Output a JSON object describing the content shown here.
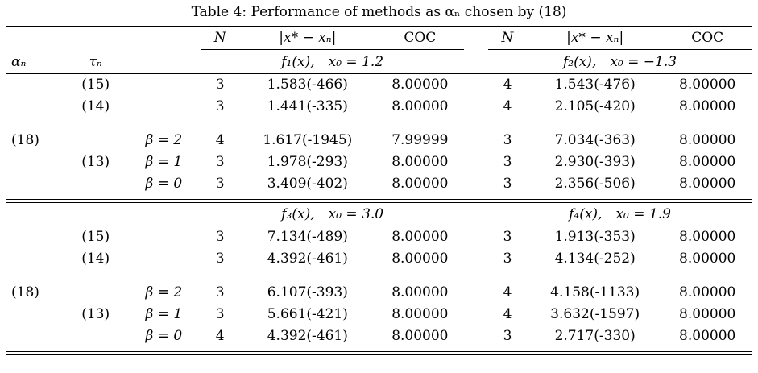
{
  "title": "Table 4: Performance of methods as αₙ chosen by (18)",
  "headers": {
    "n": "N",
    "err": "|x* − xₙ|",
    "coc": "COC",
    "alpha": "αₙ",
    "tau": "τₙ"
  },
  "block1": {
    "left_fn": "f₁(x), x₀ = 1.2",
    "right_fn": "f₂(x), x₀ = −1.3",
    "rows": [
      {
        "alpha": "",
        "tau": "(15)",
        "beta": "",
        "n1": "3",
        "err1": "1.583(-466)",
        "coc1": "8.00000",
        "n2": "4",
        "err2": "1.543(-476)",
        "coc2": "8.00000"
      },
      {
        "alpha": "",
        "tau": "(14)",
        "beta": "",
        "n1": "3",
        "err1": "1.441(-335)",
        "coc1": "8.00000",
        "n2": "4",
        "err2": "2.105(-420)",
        "coc2": "8.00000"
      },
      {
        "alpha": "(18)",
        "tau": "",
        "beta": "β = 2",
        "n1": "4",
        "err1": "1.617(-1945)",
        "coc1": "7.99999",
        "n2": "3",
        "err2": "7.034(-363)",
        "coc2": "8.00000"
      },
      {
        "alpha": "",
        "tau": "(13)",
        "beta": "β = 1",
        "n1": "3",
        "err1": "1.978(-293)",
        "coc1": "8.00000",
        "n2": "3",
        "err2": "2.930(-393)",
        "coc2": "8.00000"
      },
      {
        "alpha": "",
        "tau": "",
        "beta": "β = 0",
        "n1": "3",
        "err1": "3.409(-402)",
        "coc1": "8.00000",
        "n2": "3",
        "err2": "2.356(-506)",
        "coc2": "8.00000"
      }
    ]
  },
  "block2": {
    "left_fn": "f₃(x), x₀ = 3.0",
    "right_fn": "f₄(x), x₀ = 1.9",
    "rows": [
      {
        "alpha": "",
        "tau": "(15)",
        "beta": "",
        "n1": "3",
        "err1": "7.134(-489)",
        "coc1": "8.00000",
        "n2": "3",
        "err2": "1.913(-353)",
        "coc2": "8.00000"
      },
      {
        "alpha": "",
        "tau": "(14)",
        "beta": "",
        "n1": "3",
        "err1": "4.392(-461)",
        "coc1": "8.00000",
        "n2": "3",
        "err2": "4.134(-252)",
        "coc2": "8.00000"
      },
      {
        "alpha": "(18)",
        "tau": "",
        "beta": "β = 2",
        "n1": "3",
        "err1": "6.107(-393)",
        "coc1": "8.00000",
        "n2": "4",
        "err2": "4.158(-1133)",
        "coc2": "8.00000"
      },
      {
        "alpha": "",
        "tau": "(13)",
        "beta": "β = 1",
        "n1": "3",
        "err1": "5.661(-421)",
        "coc1": "8.00000",
        "n2": "4",
        "err2": "3.632(-1597)",
        "coc2": "8.00000"
      },
      {
        "alpha": "",
        "tau": "",
        "beta": "β = 0",
        "n1": "4",
        "err1": "4.392(-461)",
        "coc1": "8.00000",
        "n2": "3",
        "err2": "2.717(-330)",
        "coc2": "8.00000"
      }
    ]
  }
}
